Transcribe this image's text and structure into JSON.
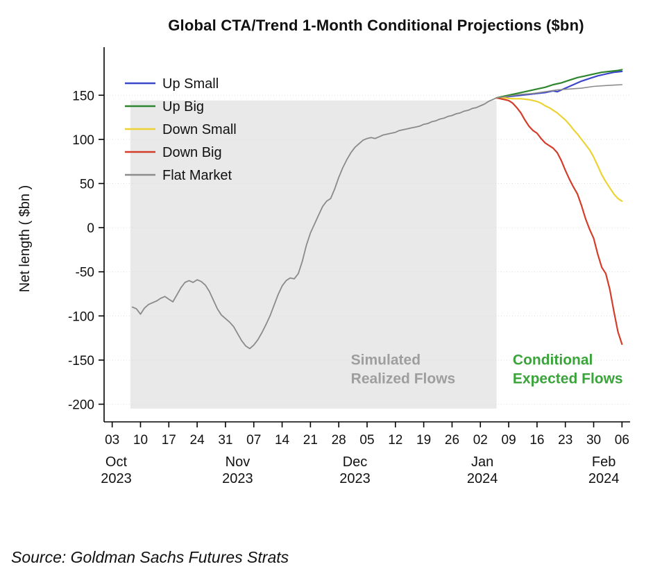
{
  "title": "Global CTA/Trend 1-Month Conditional Projections ($bn)",
  "source": "Source: Goldman Sachs Futures Strats",
  "chart_data": {
    "type": "line",
    "title": "Global CTA/Trend 1-Month Conditional Projections ($bn)",
    "ylabel": "Net length ( $bn )",
    "xlabel": "",
    "ylim": [
      -220,
      195
    ],
    "xlim": [
      -2,
      128
    ],
    "grid": "horizontal-dotted",
    "legend_position": "upper-left-inside",
    "yticks": [
      -200,
      -150,
      -100,
      -50,
      0,
      50,
      100,
      150
    ],
    "xticks": [
      {
        "day": 0,
        "label": "03"
      },
      {
        "day": 7,
        "label": "10"
      },
      {
        "day": 14,
        "label": "17"
      },
      {
        "day": 21,
        "label": "24"
      },
      {
        "day": 28,
        "label": "31"
      },
      {
        "day": 35,
        "label": "07"
      },
      {
        "day": 42,
        "label": "14"
      },
      {
        "day": 49,
        "label": "21"
      },
      {
        "day": 56,
        "label": "28"
      },
      {
        "day": 63,
        "label": "05"
      },
      {
        "day": 70,
        "label": "12"
      },
      {
        "day": 77,
        "label": "19"
      },
      {
        "day": 84,
        "label": "26"
      },
      {
        "day": 91,
        "label": "02"
      },
      {
        "day": 98,
        "label": "09"
      },
      {
        "day": 105,
        "label": "16"
      },
      {
        "day": 112,
        "label": "23"
      },
      {
        "day": 119,
        "label": "30"
      },
      {
        "day": 126,
        "label": "06"
      }
    ],
    "month_labels": [
      {
        "day": 1,
        "month": "Oct",
        "year": "2023"
      },
      {
        "day": 31,
        "month": "Nov",
        "year": "2023"
      },
      {
        "day": 60,
        "month": "Dec",
        "year": "2023"
      },
      {
        "day": 91.5,
        "month": "Jan",
        "year": "2024"
      },
      {
        "day": 121.5,
        "month": "Feb",
        "year": "2024"
      }
    ],
    "shaded_region": {
      "x0": 4.5,
      "x1": 95,
      "y0": -205,
      "y1": 144,
      "color": "#e9e9e9"
    },
    "annotations": [
      {
        "lines": [
          "Simulated",
          "Realized Flows"
        ],
        "x": 59,
        "y": -155,
        "color": "#9e9e9e"
      },
      {
        "lines": [
          "Conditional",
          "Expected Flows"
        ],
        "x": 99,
        "y": -155,
        "color": "#3aa43a"
      }
    ],
    "legend": [
      {
        "label": "Up Small",
        "color": "#3b46c9"
      },
      {
        "label": "Up Big",
        "color": "#2d862d"
      },
      {
        "label": "Down Small",
        "color": "#ecd333"
      },
      {
        "label": "Down Big",
        "color": "#d43d2a"
      },
      {
        "label": "Flat Market",
        "color": "#8c8c8c"
      }
    ],
    "series": [
      {
        "id": "realized",
        "name": "Simulated Realized Flows",
        "color": "#8a8a8a",
        "width": 1.8,
        "points": [
          [
            5,
            -90
          ],
          [
            6,
            -92
          ],
          [
            7,
            -98
          ],
          [
            8,
            -91
          ],
          [
            9,
            -87
          ],
          [
            10,
            -85
          ],
          [
            11,
            -83
          ],
          [
            12,
            -80
          ],
          [
            13,
            -78
          ],
          [
            14,
            -81
          ],
          [
            15,
            -84
          ],
          [
            16,
            -76
          ],
          [
            17,
            -68
          ],
          [
            18,
            -62
          ],
          [
            19,
            -60
          ],
          [
            20,
            -62
          ],
          [
            21,
            -59
          ],
          [
            22,
            -61
          ],
          [
            23,
            -65
          ],
          [
            24,
            -72
          ],
          [
            25,
            -82
          ],
          [
            26,
            -92
          ],
          [
            27,
            -99
          ],
          [
            28,
            -103
          ],
          [
            29,
            -107
          ],
          [
            30,
            -112
          ],
          [
            31,
            -120
          ],
          [
            32,
            -128
          ],
          [
            33,
            -134
          ],
          [
            34,
            -137
          ],
          [
            35,
            -133
          ],
          [
            36,
            -127
          ],
          [
            37,
            -119
          ],
          [
            38,
            -110
          ],
          [
            39,
            -100
          ],
          [
            40,
            -88
          ],
          [
            41,
            -76
          ],
          [
            42,
            -66
          ],
          [
            43,
            -60
          ],
          [
            44,
            -57
          ],
          [
            45,
            -58
          ],
          [
            46,
            -52
          ],
          [
            47,
            -38
          ],
          [
            48,
            -20
          ],
          [
            49,
            -6
          ],
          [
            50,
            4
          ],
          [
            51,
            14
          ],
          [
            52,
            24
          ],
          [
            53,
            30
          ],
          [
            54,
            33
          ],
          [
            55,
            44
          ],
          [
            56,
            57
          ],
          [
            57,
            68
          ],
          [
            58,
            77
          ],
          [
            59,
            85
          ],
          [
            60,
            91
          ],
          [
            61,
            95
          ],
          [
            62,
            99
          ],
          [
            63,
            101
          ],
          [
            64,
            102
          ],
          [
            65,
            101
          ],
          [
            66,
            103
          ],
          [
            67,
            105
          ],
          [
            68,
            106
          ],
          [
            69,
            107
          ],
          [
            70,
            108
          ],
          [
            71,
            110
          ],
          [
            72,
            111
          ],
          [
            73,
            112
          ],
          [
            74,
            113
          ],
          [
            75,
            114
          ],
          [
            76,
            115
          ],
          [
            77,
            117
          ],
          [
            78,
            118
          ],
          [
            79,
            120
          ],
          [
            80,
            121
          ],
          [
            81,
            123
          ],
          [
            82,
            124
          ],
          [
            83,
            126
          ],
          [
            84,
            127
          ],
          [
            85,
            129
          ],
          [
            86,
            130
          ],
          [
            87,
            132
          ],
          [
            88,
            133
          ],
          [
            89,
            135
          ],
          [
            90,
            136
          ],
          [
            91,
            138
          ],
          [
            92,
            140
          ],
          [
            93,
            143
          ],
          [
            94,
            145
          ],
          [
            95,
            147
          ]
        ]
      },
      {
        "id": "up-small",
        "name": "Up Small",
        "color": "#3b46c9",
        "width": 2.2,
        "points": [
          [
            95,
            147
          ],
          [
            97,
            148
          ],
          [
            99,
            149
          ],
          [
            101,
            150
          ],
          [
            103,
            151
          ],
          [
            105,
            152
          ],
          [
            107,
            153
          ],
          [
            109,
            155
          ],
          [
            110,
            154
          ],
          [
            112,
            158
          ],
          [
            114,
            162
          ],
          [
            116,
            166
          ],
          [
            118,
            169
          ],
          [
            120,
            172
          ],
          [
            122,
            174
          ],
          [
            124,
            176
          ],
          [
            126,
            177
          ]
        ]
      },
      {
        "id": "up-big",
        "name": "Up Big",
        "color": "#2d862d",
        "width": 2.2,
        "points": [
          [
            95,
            147
          ],
          [
            97,
            149
          ],
          [
            99,
            151
          ],
          [
            101,
            153
          ],
          [
            103,
            155
          ],
          [
            105,
            157
          ],
          [
            107,
            159
          ],
          [
            109,
            162
          ],
          [
            111,
            164
          ],
          [
            113,
            167
          ],
          [
            115,
            170
          ],
          [
            117,
            172
          ],
          [
            119,
            174
          ],
          [
            121,
            176
          ],
          [
            123,
            177
          ],
          [
            125,
            178
          ],
          [
            126,
            179
          ]
        ]
      },
      {
        "id": "down-small",
        "name": "Down Small",
        "color": "#ecd333",
        "width": 2.2,
        "points": [
          [
            95,
            147
          ],
          [
            97,
            147
          ],
          [
            99,
            146
          ],
          [
            101,
            146
          ],
          [
            103,
            145
          ],
          [
            105,
            143
          ],
          [
            106,
            141
          ],
          [
            107,
            138
          ],
          [
            108,
            136
          ],
          [
            109,
            133
          ],
          [
            110,
            130
          ],
          [
            111,
            126
          ],
          [
            112,
            122
          ],
          [
            113,
            117
          ],
          [
            114,
            111
          ],
          [
            115,
            106
          ],
          [
            116,
            100
          ],
          [
            117,
            94
          ],
          [
            118,
            88
          ],
          [
            119,
            80
          ],
          [
            120,
            70
          ],
          [
            121,
            60
          ],
          [
            122,
            52
          ],
          [
            123,
            45
          ],
          [
            124,
            38
          ],
          [
            125,
            33
          ],
          [
            126,
            30
          ]
        ]
      },
      {
        "id": "down-big",
        "name": "Down Big",
        "color": "#d43d2a",
        "width": 2.2,
        "points": [
          [
            95,
            147
          ],
          [
            96,
            146
          ],
          [
            97,
            145
          ],
          [
            98,
            144
          ],
          [
            99,
            141
          ],
          [
            100,
            136
          ],
          [
            101,
            130
          ],
          [
            102,
            122
          ],
          [
            103,
            115
          ],
          [
            104,
            110
          ],
          [
            105,
            107
          ],
          [
            106,
            101
          ],
          [
            107,
            96
          ],
          [
            108,
            93
          ],
          [
            109,
            90
          ],
          [
            110,
            85
          ],
          [
            111,
            76
          ],
          [
            112,
            65
          ],
          [
            113,
            55
          ],
          [
            114,
            46
          ],
          [
            115,
            38
          ],
          [
            116,
            25
          ],
          [
            117,
            10
          ],
          [
            118,
            -2
          ],
          [
            119,
            -12
          ],
          [
            120,
            -30
          ],
          [
            121,
            -45
          ],
          [
            122,
            -52
          ],
          [
            123,
            -70
          ],
          [
            124,
            -95
          ],
          [
            125,
            -118
          ],
          [
            126,
            -132
          ]
        ]
      },
      {
        "id": "flat-market",
        "name": "Flat Market",
        "color": "#8c8c8c",
        "width": 1.6,
        "points": [
          [
            95,
            147
          ],
          [
            98,
            149
          ],
          [
            101,
            151
          ],
          [
            104,
            152
          ],
          [
            107,
            154
          ],
          [
            110,
            156
          ],
          [
            113,
            157
          ],
          [
            116,
            158
          ],
          [
            119,
            160
          ],
          [
            122,
            161
          ],
          [
            126,
            162
          ]
        ]
      }
    ]
  }
}
